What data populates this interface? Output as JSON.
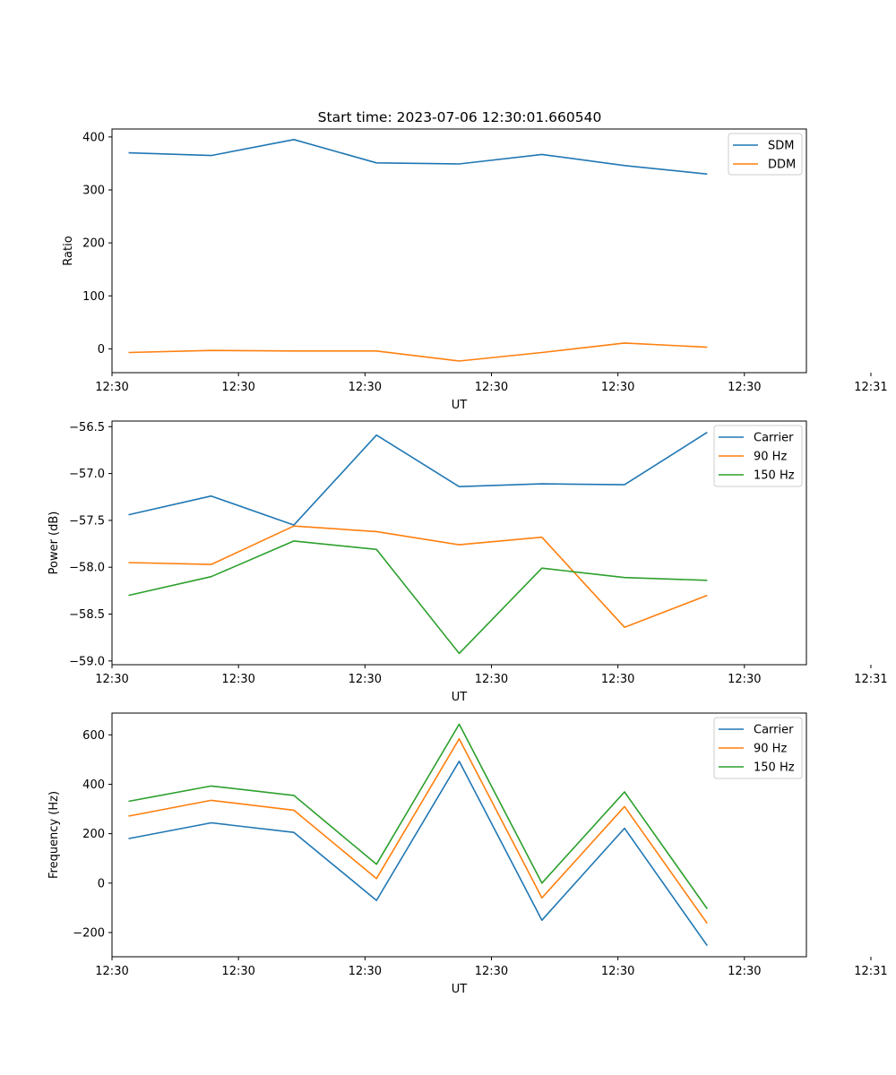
{
  "figure_title": "Start time: 2023-07-06 12:30:01.660540",
  "chart_data": [
    {
      "type": "line",
      "title": "Start time: 2023-07-06 12:30:01.660540",
      "xlabel": "UT",
      "ylabel": "Ratio",
      "x": [
        1,
        2,
        3,
        4,
        5,
        6,
        7,
        8
      ],
      "xlim": [
        0.8,
        9.2
      ],
      "xticks": [
        {
          "value": 0.8,
          "label": "12:30"
        },
        {
          "value": 2.33,
          "label": "12:30"
        },
        {
          "value": 3.86,
          "label": "12:30"
        },
        {
          "value": 5.39,
          "label": "12:30"
        },
        {
          "value": 6.92,
          "label": "12:30"
        },
        {
          "value": 8.45,
          "label": "12:30"
        },
        {
          "value": 9.98,
          "label": "12:31"
        }
      ],
      "ylim": [
        -45,
        415
      ],
      "yticks": [
        0,
        100,
        200,
        300,
        400
      ],
      "legend": "top-right",
      "series": [
        {
          "name": "SDM",
          "color": "#1f77b4",
          "values": [
            370,
            365,
            395,
            351,
            349,
            367,
            346,
            330
          ]
        },
        {
          "name": "DDM",
          "color": "#ff7f0e",
          "values": [
            -7,
            -3,
            -4,
            -4,
            -23,
            -7,
            11,
            3
          ]
        }
      ]
    },
    {
      "type": "line",
      "xlabel": "UT",
      "ylabel": "Power (dB)",
      "x": [
        1,
        2,
        3,
        4,
        5,
        6,
        7,
        8
      ],
      "xlim": [
        0.8,
        9.2
      ],
      "xticks": [
        {
          "value": 0.8,
          "label": "12:30"
        },
        {
          "value": 2.33,
          "label": "12:30"
        },
        {
          "value": 3.86,
          "label": "12:30"
        },
        {
          "value": 5.39,
          "label": "12:30"
        },
        {
          "value": 6.92,
          "label": "12:30"
        },
        {
          "value": 8.45,
          "label": "12:30"
        },
        {
          "value": 9.98,
          "label": "12:31"
        }
      ],
      "ylim": [
        -59.04,
        -56.44
      ],
      "yticks": [
        -59.0,
        -58.5,
        -58.0,
        -57.5,
        -57.0,
        -56.5
      ],
      "ytick_labels": [
        "−59.0",
        "−58.5",
        "−58.0",
        "−57.5",
        "−57.0",
        "−56.5"
      ],
      "legend": "top-right",
      "series": [
        {
          "name": "Carrier",
          "color": "#1f77b4",
          "values": [
            -57.44,
            -57.24,
            -57.55,
            -56.59,
            -57.14,
            -57.11,
            -57.12,
            -56.56
          ]
        },
        {
          "name": "90 Hz",
          "color": "#ff7f0e",
          "values": [
            -57.95,
            -57.97,
            -57.56,
            -57.62,
            -57.76,
            -57.68,
            -58.64,
            -58.3
          ]
        },
        {
          "name": "150 Hz",
          "color": "#2ca02c",
          "values": [
            -58.3,
            -58.1,
            -57.72,
            -57.81,
            -58.92,
            -58.01,
            -58.11,
            -58.14
          ]
        }
      ]
    },
    {
      "type": "line",
      "xlabel": "UT",
      "ylabel": "Frequency (Hz)",
      "x": [
        1,
        2,
        3,
        4,
        5,
        6,
        7,
        8
      ],
      "xlim": [
        0.8,
        9.2
      ],
      "xticks": [
        {
          "value": 0.8,
          "label": "12:30"
        },
        {
          "value": 2.33,
          "label": "12:30"
        },
        {
          "value": 3.86,
          "label": "12:30"
        },
        {
          "value": 5.39,
          "label": "12:30"
        },
        {
          "value": 6.92,
          "label": "12:30"
        },
        {
          "value": 8.45,
          "label": "12:30"
        },
        {
          "value": 9.98,
          "label": "12:31"
        }
      ],
      "ylim": [
        -298,
        688
      ],
      "yticks": [
        -200,
        0,
        200,
        400,
        600
      ],
      "ytick_labels": [
        "−200",
        "0",
        "200",
        "400",
        "600"
      ],
      "legend": "top-right",
      "series": [
        {
          "name": "Carrier",
          "color": "#1f77b4",
          "values": [
            180,
            244,
            205,
            -70,
            493,
            -150,
            222,
            -253
          ]
        },
        {
          "name": "90 Hz",
          "color": "#ff7f0e",
          "values": [
            271,
            335,
            295,
            18,
            584,
            -60,
            310,
            -163
          ]
        },
        {
          "name": "150 Hz",
          "color": "#2ca02c",
          "values": [
            331,
            393,
            355,
            76,
            643,
            0,
            369,
            -104
          ]
        }
      ]
    }
  ]
}
